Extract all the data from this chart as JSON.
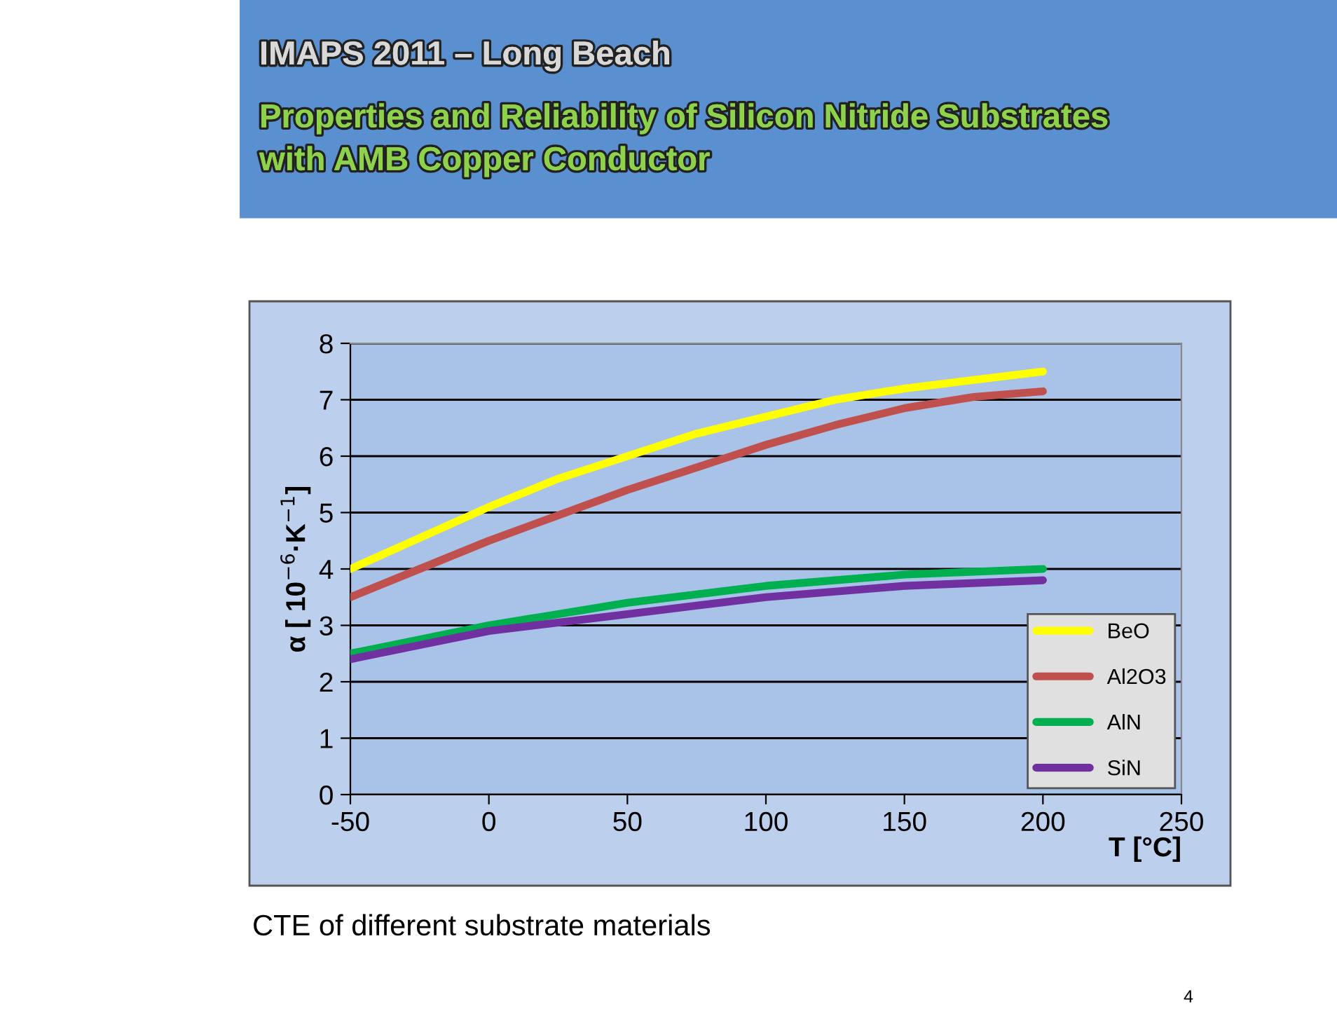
{
  "chart_data": {
    "type": "line",
    "title": "IMAPS 2011 – Long Beach",
    "subtitle": "Properties and Reliability of Silicon Nitride Substrates\nwith AMB Copper Conductor",
    "xlabel": "T [°C]",
    "ylabel": "α [ 10$^{−6}$·K$^{−1}$]",
    "x": [
      -50,
      -25,
      0,
      25,
      50,
      75,
      100,
      125,
      150,
      175,
      200
    ],
    "series": [
      {
        "name": "BeO",
        "color": "#ffff00",
        "values": [
          4.0,
          4.55,
          5.1,
          5.6,
          6.0,
          6.4,
          6.7,
          7.0,
          7.2,
          7.35,
          7.5
        ]
      },
      {
        "name": "Al2O3",
        "color": "#c0504d",
        "values": [
          3.5,
          4.0,
          4.5,
          4.95,
          5.4,
          5.8,
          6.2,
          6.55,
          6.85,
          7.05,
          7.15
        ]
      },
      {
        "name": "AlN",
        "color": "#00b050",
        "values": [
          2.5,
          2.75,
          3.0,
          3.2,
          3.4,
          3.55,
          3.7,
          3.8,
          3.9,
          3.95,
          4.0
        ]
      },
      {
        "name": "SiN",
        "color": "#7030a0",
        "values": [
          2.4,
          2.65,
          2.9,
          3.05,
          3.2,
          3.35,
          3.5,
          3.6,
          3.7,
          3.75,
          3.8
        ]
      }
    ],
    "xlim": [
      -50,
      250
    ],
    "xticks": [
      -50,
      0,
      50,
      100,
      150,
      200,
      250
    ],
    "ylim": [
      0,
      8
    ],
    "yticks": [
      0,
      1,
      2,
      3,
      4,
      5,
      6,
      7,
      8
    ],
    "grid": "y",
    "legend": "bottom right",
    "marker": "none",
    "line_style": "solid",
    "annotations": [
      "CTE of different substrate materials",
      "4"
    ]
  }
}
